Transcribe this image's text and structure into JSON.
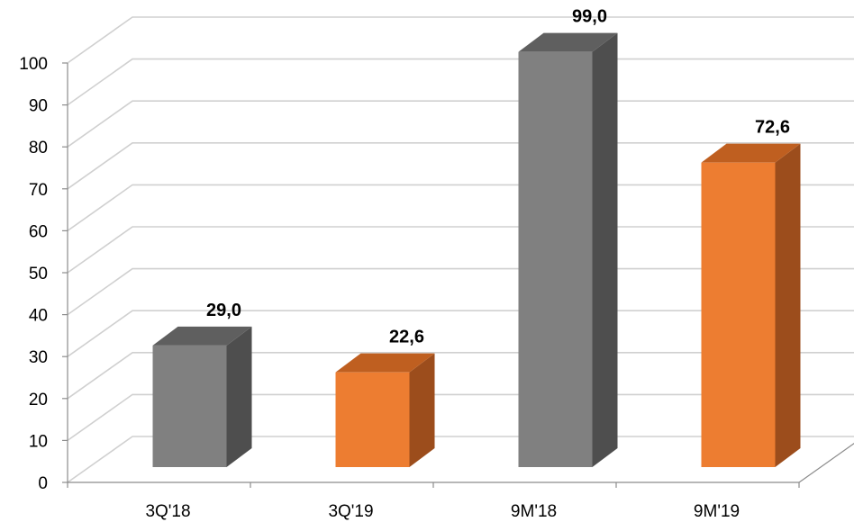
{
  "chart_data": {
    "type": "bar",
    "style": "3d",
    "categories": [
      "3Q'18",
      "3Q'19",
      "9M'18",
      "9M'19"
    ],
    "values": [
      29.0,
      22.6,
      99.0,
      72.6
    ],
    "value_labels": [
      "29,0",
      "22,6",
      "99,0",
      "72,6"
    ],
    "title": "",
    "xlabel": "",
    "ylabel": "",
    "ylim": [
      0,
      100
    ],
    "yticks": [
      0,
      10,
      20,
      30,
      40,
      50,
      60,
      70,
      80,
      90,
      100
    ],
    "grid": true,
    "legend": "none",
    "colors": {
      "gray": {
        "front": "#808080",
        "top": "#5f5f5f",
        "side": "#4e4e4e"
      },
      "orange": {
        "front": "#ed7d31",
        "top": "#bf5f20",
        "side": "#9c4d1c"
      }
    },
    "bar_colors": [
      "gray",
      "orange",
      "gray",
      "orange"
    ],
    "gridline_color": "#d0d0d0",
    "axis_color": "#8c8c8c"
  }
}
